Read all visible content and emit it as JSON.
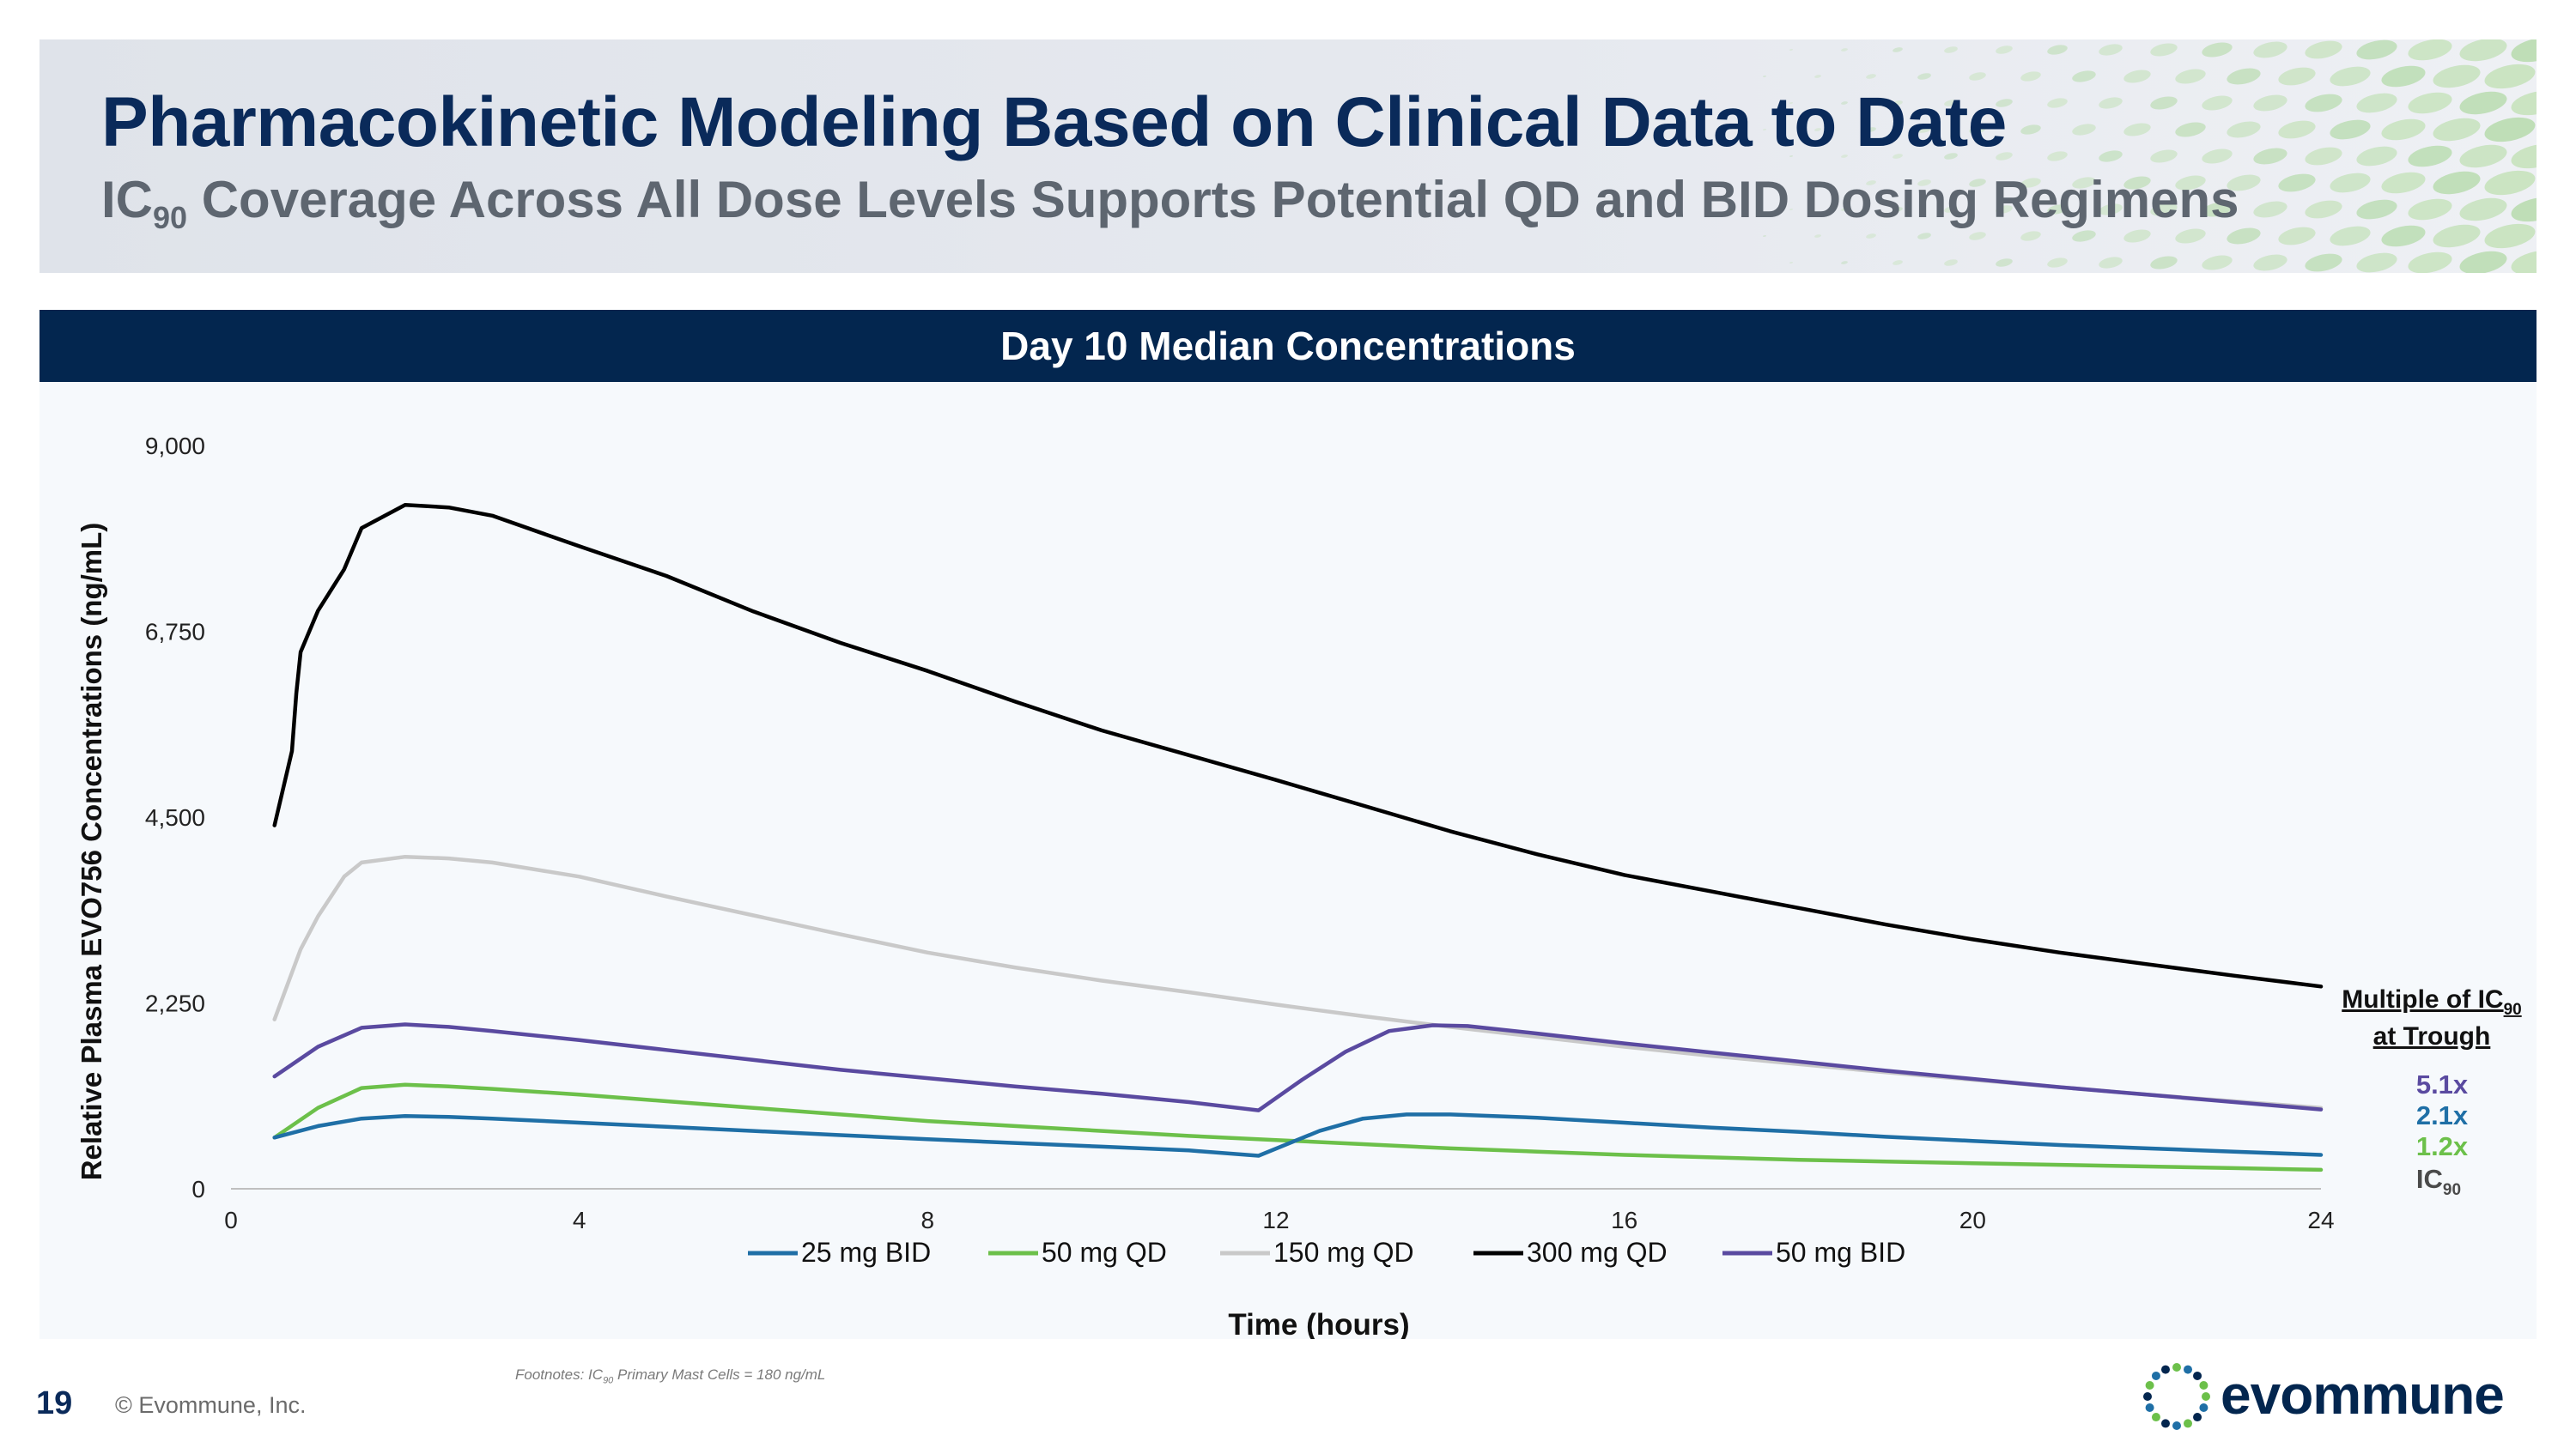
{
  "header": {
    "title": "Pharmacokinetic Modeling Based on Clinical Data to Date",
    "subtitle_prefix": "IC",
    "subtitle_sub": "90",
    "subtitle_rest": " Coverage Across All Dose Levels Supports Potential QD and BID Dosing Regimens"
  },
  "banner": {
    "label": "Day 10 Median Concentrations"
  },
  "footer": {
    "page_number": "19",
    "copyright": "© Evommune, Inc.",
    "footnote_prefix": "Footnotes: IC",
    "footnote_sub": "90",
    "footnote_rest": " Primary Mast Cells = 180 ng/mL",
    "logo_text": "evommune"
  },
  "colors": {
    "navy": "#03264f",
    "series_25_bid": "#1f6fa6",
    "series_50_qd": "#6cc04a",
    "series_150_qd": "#c9c9c9",
    "series_300_qd": "#000000",
    "series_50_bid": "#5a4aa0"
  },
  "chart_data": {
    "type": "line",
    "xlabel": "Time (hours)",
    "ylabel": "Relative Plasma EVO756 Concentrations (ng/mL)",
    "xlim": [
      0,
      24
    ],
    "ylim": [
      0,
      9000
    ],
    "xticks": [
      0,
      4,
      8,
      12,
      16,
      20,
      24
    ],
    "yticks": [
      0,
      2250,
      4500,
      6750,
      9000
    ],
    "ytick_labels": [
      "0",
      "2,250",
      "4,500",
      "6,750",
      "9,000"
    ],
    "grid": false,
    "legend": "bottom",
    "series": [
      {
        "name": "25 mg BID",
        "color": "#1f6fa6",
        "x": [
          0.5,
          1,
          1.5,
          2,
          2.5,
          3,
          4,
          5,
          6,
          7,
          8,
          9,
          10,
          11,
          11.8,
          12.5,
          13,
          13.5,
          14,
          15,
          16,
          17,
          18,
          19,
          20,
          21,
          22,
          23,
          24
        ],
        "y": [
          620,
          760,
          850,
          880,
          870,
          850,
          800,
          750,
          700,
          650,
          600,
          555,
          510,
          465,
          400,
          700,
          850,
          900,
          900,
          860,
          800,
          740,
          690,
          630,
          580,
          530,
          490,
          450,
          410
        ]
      },
      {
        "name": "50 mg QD",
        "color": "#6cc04a",
        "x": [
          0.5,
          1,
          1.5,
          2,
          2.5,
          3,
          4,
          5,
          6,
          7,
          8,
          9,
          10,
          11,
          12,
          13,
          14,
          15,
          16,
          17,
          18,
          19,
          20,
          21,
          22,
          23,
          24
        ],
        "y": [
          620,
          980,
          1220,
          1260,
          1240,
          1210,
          1140,
          1060,
          980,
          900,
          820,
          760,
          700,
          640,
          590,
          540,
          490,
          450,
          410,
          380,
          350,
          330,
          310,
          290,
          270,
          250,
          230
        ]
      },
      {
        "name": "150 mg QD",
        "color": "#c9c9c9",
        "x": [
          0.5,
          0.8,
          1,
          1.3,
          1.5,
          2,
          2.5,
          3,
          4,
          5,
          6,
          7,
          8,
          9,
          10,
          11,
          12,
          13,
          14,
          15,
          16,
          17,
          18,
          19,
          20,
          21,
          22,
          23,
          24
        ],
        "y": [
          2050,
          2900,
          3300,
          3780,
          3950,
          4020,
          4000,
          3950,
          3780,
          3540,
          3310,
          3080,
          2860,
          2680,
          2520,
          2380,
          2230,
          2090,
          1960,
          1840,
          1720,
          1610,
          1510,
          1410,
          1320,
          1230,
          1140,
          1060,
          980
        ]
      },
      {
        "name": "300 mg QD",
        "color": "#000000",
        "x": [
          0.5,
          0.7,
          0.75,
          0.8,
          1,
          1.3,
          1.5,
          2,
          2.5,
          3,
          4,
          5,
          6,
          7,
          8,
          9,
          10,
          11,
          12,
          13,
          14,
          15,
          16,
          17,
          18,
          19,
          20,
          21,
          22,
          23,
          24
        ],
        "y": [
          4400,
          5300,
          6000,
          6500,
          7000,
          7500,
          8000,
          8280,
          8250,
          8150,
          7780,
          7420,
          6990,
          6610,
          6270,
          5900,
          5550,
          5250,
          4950,
          4640,
          4330,
          4050,
          3800,
          3600,
          3400,
          3200,
          3020,
          2860,
          2720,
          2580,
          2450
        ]
      },
      {
        "name": "50 mg BID",
        "color": "#5a4aa0",
        "x": [
          0.5,
          1,
          1.5,
          2,
          2.5,
          3,
          4,
          5,
          6,
          7,
          8,
          9,
          10,
          11,
          11.8,
          12.3,
          12.8,
          13.3,
          13.8,
          14.2,
          15,
          16,
          17,
          18,
          19,
          20,
          21,
          22,
          23,
          24
        ],
        "y": [
          1360,
          1720,
          1950,
          1990,
          1960,
          1910,
          1800,
          1680,
          1560,
          1440,
          1340,
          1240,
          1150,
          1050,
          950,
          1320,
          1660,
          1910,
          1980,
          1970,
          1880,
          1760,
          1650,
          1540,
          1430,
          1330,
          1230,
          1140,
          1050,
          960
        ]
      }
    ],
    "annotation": {
      "title_line1_prefix": "Multiple of IC",
      "title_line1_sub": "90",
      "title_line2": "at Trough",
      "values": [
        {
          "label": "5.1x",
          "color": "#5a4aa0"
        },
        {
          "label": "2.1x",
          "color": "#1f6fa6"
        },
        {
          "label": "1.2x",
          "color": "#6cc04a"
        }
      ],
      "ic90_prefix": "IC",
      "ic90_sub": "90",
      "ic90_color": "#4a4a4a"
    }
  }
}
